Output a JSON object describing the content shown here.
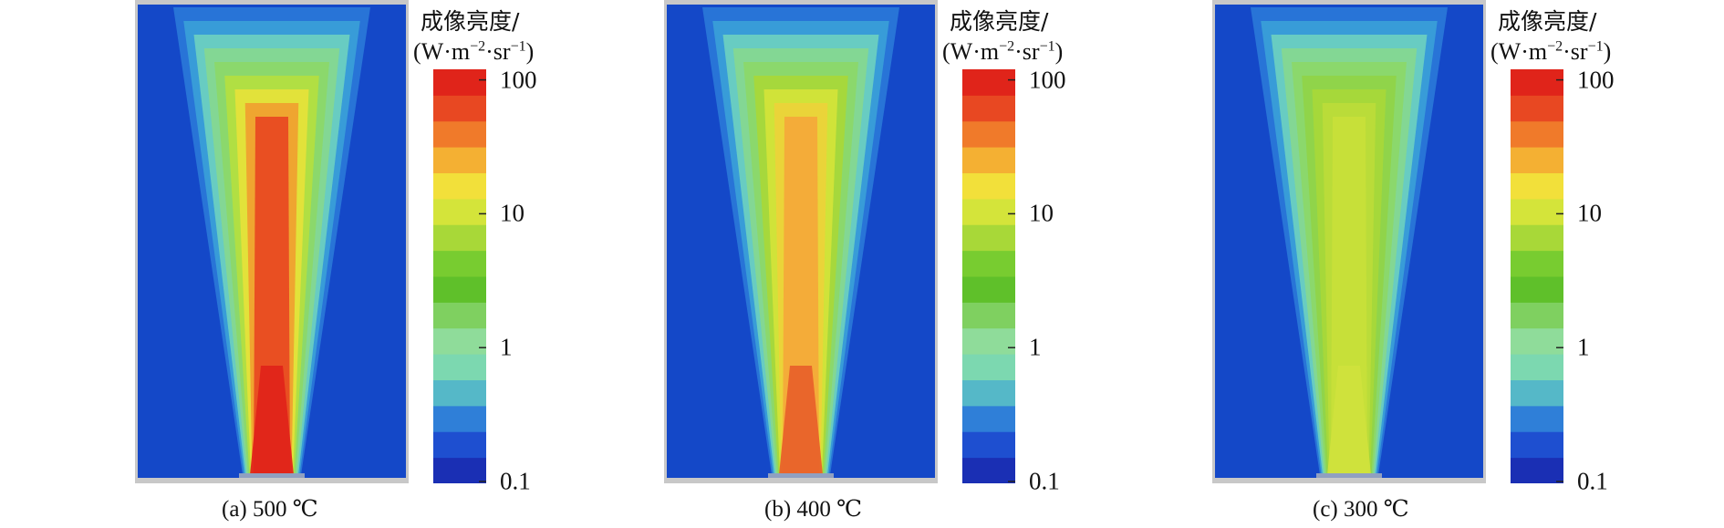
{
  "colors": {
    "background_blue": "#1448c8",
    "frame_gray": "#c8c8c8",
    "colorbar_stops": [
      "#1a2fb4",
      "#1e4fd0",
      "#2f7fd8",
      "#55b8c8",
      "#7cd8b0",
      "#8fdc9a",
      "#7fd060",
      "#5fc02a",
      "#78cc30",
      "#a8d838",
      "#d4e43a",
      "#f2e03a",
      "#f4b033",
      "#f07a2a",
      "#e84822",
      "#e0241a"
    ]
  },
  "panels": [
    {
      "caption": "(a) 500 ℃",
      "colorbar_title_line1": "成像亮度/",
      "colorbar_title_line2_prefix": "(W·m",
      "colorbar_title_sup1": "−2",
      "colorbar_title_mid": "·sr",
      "colorbar_title_sup2": "−1",
      "colorbar_title_suffix": ")",
      "plume_layers": [
        "#2a78d8",
        "#3aa0d8",
        "#6cd0c0",
        "#86d890",
        "#8cd868",
        "#b4e040",
        "#e6e23a",
        "#f0a030",
        "#e84822"
      ],
      "plume_core_max": "#e0241a"
    },
    {
      "caption": "(b) 400 ℃",
      "colorbar_title_line1": "成像亮度/",
      "colorbar_title_line2_prefix": "(W·m",
      "colorbar_title_sup1": "−2",
      "colorbar_title_mid": "·sr",
      "colorbar_title_sup2": "−1",
      "colorbar_title_suffix": ")",
      "plume_layers": [
        "#2a78d8",
        "#3aa0d8",
        "#6cd0c0",
        "#86d890",
        "#8cd868",
        "#a8d838",
        "#d4e43a",
        "#ecd23a",
        "#f4a83a"
      ],
      "plume_core_max": "#e8622a"
    },
    {
      "caption": "(c) 300 ℃",
      "colorbar_title_line1": "成像亮度/",
      "colorbar_title_line2_prefix": "(W·m",
      "colorbar_title_sup1": "−2",
      "colorbar_title_mid": "·sr",
      "colorbar_title_sup2": "−1",
      "colorbar_title_suffix": ")",
      "plume_layers": [
        "#2a78d8",
        "#3aa0d8",
        "#6cd0c0",
        "#86d890",
        "#8cd868",
        "#90d448",
        "#a8d838",
        "#bcdc3a",
        "#c8e03a"
      ],
      "plume_core_max": "#d0e23c"
    }
  ],
  "chart_data": [
    {
      "type": "heatmap",
      "caption": "(a) 500 ℃",
      "colorbar_label": "成像亮度/(W·m−2·sr−1)",
      "colorbar_scale": "log",
      "colorbar_range": [
        0.1,
        100
      ],
      "colorbar_ticks": [
        0.1,
        1,
        10,
        100
      ],
      "colorbar_tick_labels": [
        "0.1",
        "1",
        "10",
        "100"
      ]
    },
    {
      "type": "heatmap",
      "caption": "(b) 400 ℃",
      "colorbar_label": "成像亮度/(W·m−2·sr−1)",
      "colorbar_scale": "log",
      "colorbar_range": [
        0.1,
        100
      ],
      "colorbar_ticks": [
        0.1,
        1,
        10,
        100
      ],
      "colorbar_tick_labels": [
        "0.1",
        "1",
        "10",
        "100"
      ]
    },
    {
      "type": "heatmap",
      "caption": "(c) 300 ℃",
      "colorbar_label": "成像亮度/(W·m−2·sr−1)",
      "colorbar_scale": "log",
      "colorbar_range": [
        0.1,
        100
      ],
      "colorbar_ticks": [
        0.1,
        1,
        10,
        100
      ],
      "colorbar_tick_labels": [
        "0.1",
        "1",
        "10",
        "100"
      ]
    }
  ]
}
